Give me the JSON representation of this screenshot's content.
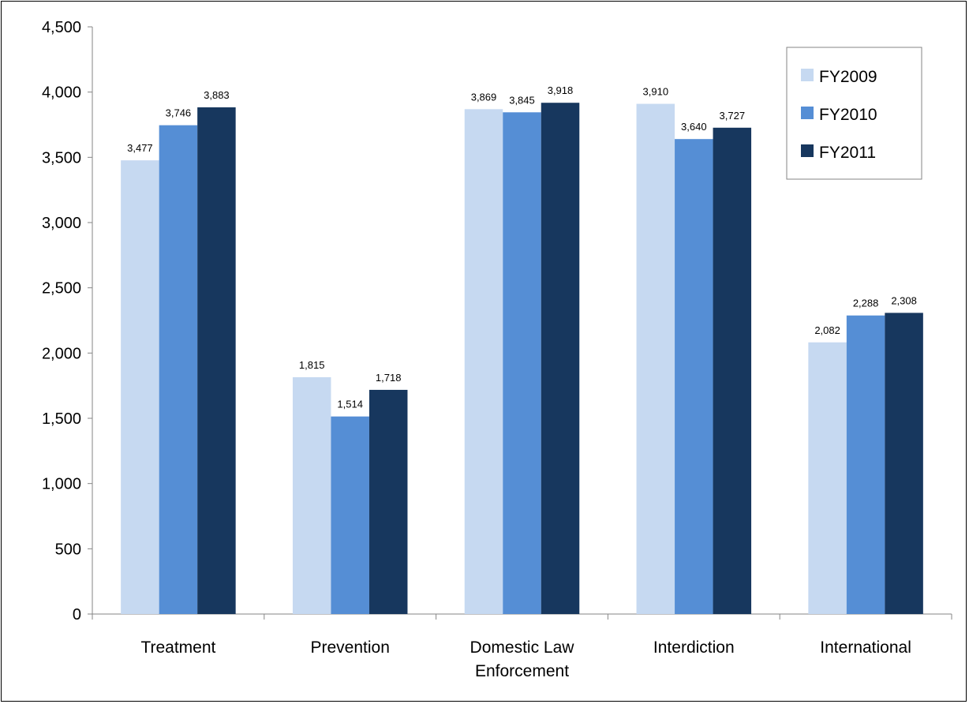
{
  "chart_data": {
    "type": "bar",
    "categories": [
      "Treatment",
      "Prevention",
      "Domestic Law Enforcement",
      "Interdiction",
      "International"
    ],
    "category_lines": [
      [
        "Treatment"
      ],
      [
        "Prevention"
      ],
      [
        "Domestic Law",
        "Enforcement"
      ],
      [
        "Interdiction"
      ],
      [
        "International"
      ]
    ],
    "series": [
      {
        "name": "FY2009",
        "color": "#c6d9f1",
        "values": [
          3477,
          1815,
          3869,
          3910,
          2082
        ]
      },
      {
        "name": "FY2010",
        "color": "#558ed5",
        "values": [
          3746,
          1514,
          3845,
          3640,
          2288
        ]
      },
      {
        "name": "FY2011",
        "color": "#17375e",
        "values": [
          3883,
          1718,
          3918,
          3727,
          2308
        ]
      }
    ],
    "ylim": [
      0,
      4500
    ],
    "yticks": [
      0,
      500,
      1000,
      1500,
      2000,
      2500,
      3000,
      3500,
      4000,
      4500
    ],
    "title": "",
    "xlabel": "",
    "ylabel": "",
    "legend_position": "top-right",
    "grid": false
  }
}
